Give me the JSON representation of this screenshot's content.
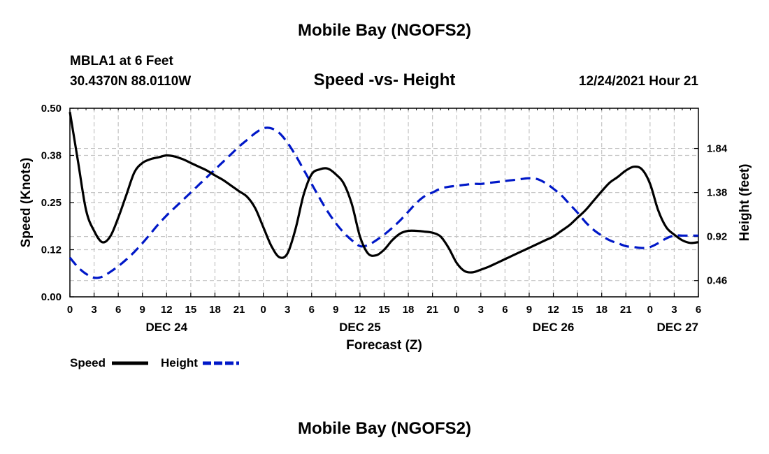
{
  "header": {
    "title_top": "Mobile Bay (NGOFS2)",
    "title_bottom": "Mobile Bay (NGOFS2)",
    "station": "MBLA1 at 6 Feet",
    "coords": "30.4370N  88.0110W",
    "subtitle": "Speed -vs- Height",
    "datetime": "12/24/2021 Hour 21"
  },
  "chart_data": {
    "type": "line",
    "title": "Speed -vs- Height",
    "xlabel": "Forecast (Z)",
    "ylabel": "Speed (Knots)",
    "y2label": "Height (feet)",
    "x_range": [
      0,
      78
    ],
    "ylim": [
      0,
      0.5
    ],
    "y2lim": [
      0.29,
      2.26
    ],
    "x_ticks": [
      0,
      3,
      6,
      9,
      12,
      15,
      18,
      21,
      24,
      27,
      30,
      33,
      36,
      39,
      42,
      45,
      48,
      51,
      54,
      57,
      60,
      63,
      66,
      69,
      72,
      75,
      78
    ],
    "x_tick_labels": [
      "0",
      "3",
      "6",
      "9",
      "12",
      "15",
      "18",
      "21",
      "0",
      "3",
      "6",
      "9",
      "12",
      "15",
      "18",
      "21",
      "0",
      "3",
      "6",
      "9",
      "12",
      "15",
      "18",
      "21",
      "0",
      "3",
      "6"
    ],
    "y_ticks": [
      0.0,
      0.125,
      0.25,
      0.375,
      0.5
    ],
    "y_tick_labels": [
      "0.00",
      "0.12",
      "0.25",
      "0.38",
      "0.50"
    ],
    "y2_ticks": [
      0.46,
      0.92,
      1.38,
      1.84
    ],
    "y2_tick_labels": [
      "0.46",
      "0.92",
      "1.38",
      "1.84"
    ],
    "date_labels": [
      {
        "x": 12,
        "label": "DEC 24"
      },
      {
        "x": 36,
        "label": "DEC 25"
      },
      {
        "x": 60,
        "label": "DEC 26"
      },
      {
        "x": 78,
        "label": "DEC 27"
      }
    ],
    "grid": true,
    "legend": [
      {
        "name": "Speed",
        "color": "#000000",
        "dash": "solid"
      },
      {
        "name": "Height",
        "color": "#0018c8",
        "dash": "dashed"
      }
    ],
    "series": [
      {
        "name": "Speed",
        "axis": "left",
        "color": "#000000",
        "x": [
          0,
          1,
          2,
          3,
          4,
          5,
          6,
          7,
          8,
          9,
          10,
          11,
          12,
          13,
          14,
          15,
          16,
          17,
          18,
          19,
          20,
          21,
          22,
          23,
          24,
          25,
          26,
          27,
          28,
          29,
          30,
          31,
          32,
          33,
          34,
          35,
          36,
          37,
          38,
          39,
          40,
          41,
          42,
          43,
          44,
          45,
          46,
          47,
          48,
          49,
          50,
          51,
          52,
          53,
          54,
          55,
          56,
          57,
          58,
          59,
          60,
          61,
          62,
          63,
          64,
          65,
          66,
          67,
          68,
          69,
          70,
          71,
          72,
          73,
          74,
          75,
          76,
          77,
          78
        ],
        "values": [
          0.49,
          0.36,
          0.23,
          0.175,
          0.145,
          0.16,
          0.21,
          0.27,
          0.33,
          0.355,
          0.365,
          0.37,
          0.375,
          0.372,
          0.365,
          0.355,
          0.345,
          0.335,
          0.322,
          0.31,
          0.295,
          0.28,
          0.265,
          0.235,
          0.185,
          0.135,
          0.105,
          0.115,
          0.18,
          0.27,
          0.325,
          0.338,
          0.34,
          0.325,
          0.3,
          0.245,
          0.16,
          0.115,
          0.11,
          0.125,
          0.15,
          0.168,
          0.175,
          0.175,
          0.173,
          0.17,
          0.16,
          0.13,
          0.09,
          0.068,
          0.065,
          0.072,
          0.08,
          0.09,
          0.1,
          0.11,
          0.12,
          0.13,
          0.14,
          0.15,
          0.16,
          0.175,
          0.19,
          0.21,
          0.23,
          0.255,
          0.28,
          0.303,
          0.318,
          0.335,
          0.345,
          0.338,
          0.3,
          0.23,
          0.185,
          0.165,
          0.15,
          0.143,
          0.145
        ]
      },
      {
        "name": "Height",
        "axis": "right",
        "color": "#0018c8",
        "x": [
          0,
          1,
          2,
          3,
          4,
          5,
          6,
          7,
          8,
          9,
          10,
          11,
          12,
          13,
          14,
          15,
          16,
          17,
          18,
          19,
          20,
          21,
          22,
          23,
          24,
          25,
          26,
          27,
          28,
          29,
          30,
          31,
          32,
          33,
          34,
          35,
          36,
          37,
          38,
          39,
          40,
          41,
          42,
          43,
          44,
          45,
          46,
          47,
          48,
          49,
          50,
          51,
          52,
          53,
          54,
          55,
          56,
          57,
          58,
          59,
          60,
          61,
          62,
          63,
          64,
          65,
          66,
          67,
          68,
          69,
          70,
          71,
          72,
          73,
          74,
          75,
          76,
          77,
          78
        ],
        "values": [
          0.7,
          0.6,
          0.53,
          0.49,
          0.5,
          0.55,
          0.61,
          0.68,
          0.76,
          0.85,
          0.95,
          1.05,
          1.14,
          1.22,
          1.3,
          1.38,
          1.46,
          1.54,
          1.62,
          1.7,
          1.78,
          1.86,
          1.93,
          2.0,
          2.05,
          2.05,
          2.0,
          1.9,
          1.77,
          1.62,
          1.47,
          1.32,
          1.18,
          1.06,
          0.96,
          0.88,
          0.82,
          0.83,
          0.88,
          0.94,
          1.01,
          1.09,
          1.18,
          1.27,
          1.34,
          1.38,
          1.42,
          1.44,
          1.45,
          1.46,
          1.47,
          1.47,
          1.48,
          1.49,
          1.5,
          1.51,
          1.52,
          1.53,
          1.52,
          1.48,
          1.42,
          1.35,
          1.26,
          1.17,
          1.07,
          0.99,
          0.93,
          0.88,
          0.85,
          0.82,
          0.81,
          0.8,
          0.81,
          0.85,
          0.9,
          0.93,
          0.93,
          0.93,
          0.93
        ]
      }
    ]
  }
}
